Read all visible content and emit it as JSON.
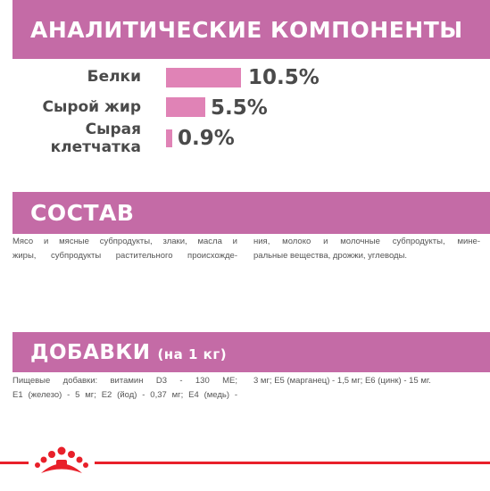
{
  "sections": {
    "analytics_title": "АНАЛИТИЧЕСКИЕ КОМПОНЕНТЫ",
    "composition_title": "СОСТАВ",
    "additives_title": "ДОБАВКИ",
    "additives_subtitle": "(на 1 кг)"
  },
  "nutrients": [
    {
      "label": "Белки",
      "value": "10.5%",
      "percent": 10.5
    },
    {
      "label": "Сырой жир",
      "value": "5.5%",
      "percent": 5.5
    },
    {
      "label_line1": "Сырая",
      "label_line2": "клетчатка",
      "value": "0.9%",
      "percent": 0.9
    }
  ],
  "composition": {
    "col1_line1": "Мясо и мясные субпродукты, злаки, масла и",
    "col1_line2": "жиры, субпродукты растительного происхожде-",
    "col2_line1": "ния, молоко и молочные субпродукты, мине-",
    "col2_line2": "ральные вещества, дрожжи, углеводы."
  },
  "additives": {
    "col1_line1": "Пищевые добавки: витамин D3 - 130 МЕ;",
    "col1_line2": "Е1 (железо) - 5 мг; Е2 (йод) - 0,37 мг; Е4 (медь) -",
    "col2_line1": "3 мг; Е5 (марганец) - 1,5 мг; Е6 (цинк) - 15 мг."
  },
  "colors": {
    "banner": "#c46ba6",
    "bar": "#e083b6",
    "footer_line": "#e8202a"
  },
  "icons": {
    "logo": "royal-canin-crown-logo"
  }
}
